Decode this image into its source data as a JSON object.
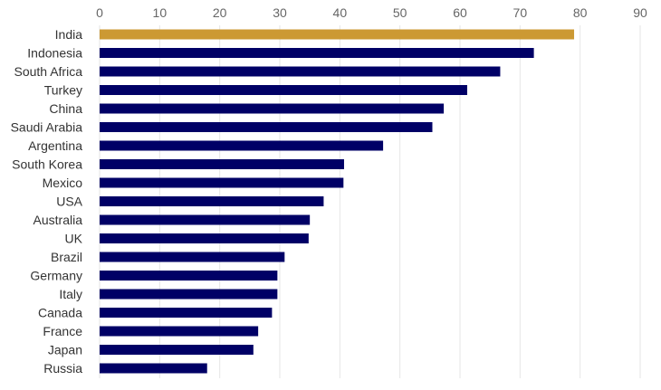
{
  "chart_data": {
    "type": "bar",
    "orientation": "horizontal",
    "title": "",
    "xlabel": "",
    "ylabel": "",
    "xlim": [
      0,
      90
    ],
    "ticks": [
      0,
      10,
      20,
      30,
      40,
      50,
      60,
      70,
      80,
      90
    ],
    "axis_position": "top",
    "grid": true,
    "legend": "none",
    "categories": [
      "India",
      "Indonesia",
      "South Africa",
      "Turkey",
      "China",
      "Saudi Arabia",
      "Argentina",
      "South Korea",
      "Mexico",
      "USA",
      "Australia",
      "UK",
      "Brazil",
      "Germany",
      "Italy",
      "Canada",
      "France",
      "Japan",
      "Russia"
    ],
    "values": [
      79.0,
      72.3,
      66.7,
      61.2,
      57.3,
      55.4,
      47.2,
      40.7,
      40.6,
      37.3,
      35.0,
      34.8,
      30.8,
      29.6,
      29.6,
      28.7,
      26.4,
      25.6,
      17.9
    ],
    "colors": {
      "highlight": "#CC9933",
      "default": "#000066",
      "grid": "#E6E6E6",
      "tick_text": "#666666",
      "label_text": "#333333"
    },
    "highlight_category": "India"
  }
}
